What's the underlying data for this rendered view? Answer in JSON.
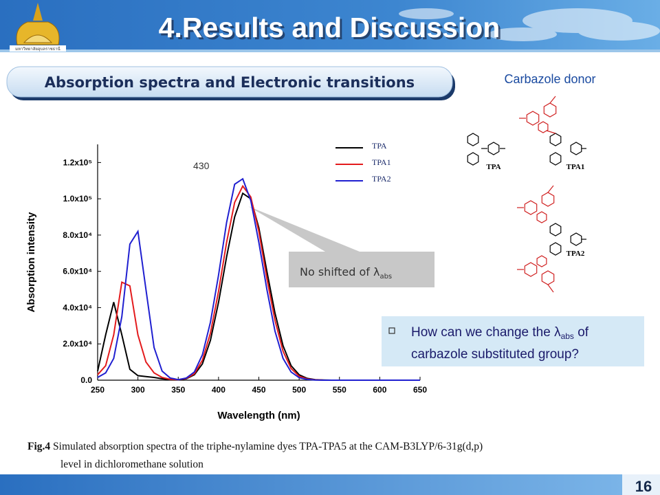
{
  "header": {
    "title": "4.Results and Discussion",
    "logo_text": "มหาวิทยาลัยอุบลราชธานี"
  },
  "banner": {
    "title": "Absorption spectra and Electronic transitions"
  },
  "structures": {
    "heading": "Carbazole donor",
    "labels": [
      "TPA",
      "TPA1",
      "TPA2"
    ]
  },
  "question": {
    "before": "How can we change the λ",
    "subscript": "abs",
    "after": " of",
    "line2": "carbazole substituted group?"
  },
  "caption": {
    "lead": "Fig.4",
    "line1": " Simulated absorption spectra of the triphe-nylamine dyes TPA-TPA5 at the CAM-B3LYP/6-31g(d,p)",
    "line2": "level in dichloromethane  solution"
  },
  "page_number": "16",
  "chart_data": {
    "type": "line",
    "xlabel": "Wavelength (nm)",
    "ylabel": "Absorption intensity",
    "x": [
      250,
      260,
      270,
      280,
      290,
      300,
      310,
      320,
      330,
      340,
      350,
      360,
      370,
      380,
      390,
      400,
      410,
      420,
      430,
      440,
      450,
      460,
      470,
      480,
      490,
      500,
      510,
      520,
      530,
      540,
      550,
      560,
      570,
      580,
      590,
      600,
      610,
      620,
      630,
      640,
      650
    ],
    "series": [
      {
        "name": "TPA",
        "color": "#000000",
        "values": [
          5000,
          25000,
          43000,
          25000,
          6000,
          2500,
          2000,
          1500,
          800,
          300,
          200,
          800,
          3000,
          9000,
          22000,
          43000,
          68000,
          90000,
          103000,
          100000,
          84000,
          60000,
          37000,
          19000,
          8000,
          3000,
          1000,
          300,
          100,
          0,
          0,
          0,
          0,
          0,
          0,
          0,
          0,
          0,
          0,
          0,
          0
        ]
      },
      {
        "name": "TPA1",
        "color": "#e31a1c",
        "values": [
          3000,
          8000,
          25000,
          54000,
          52000,
          25000,
          10000,
          4000,
          1500,
          500,
          300,
          1000,
          3500,
          11000,
          26000,
          49000,
          76000,
          98000,
          107000,
          101000,
          82000,
          56000,
          33000,
          16000,
          6500,
          2200,
          700,
          200,
          50,
          0,
          0,
          0,
          0,
          0,
          0,
          0,
          0,
          0,
          0,
          0,
          0
        ]
      },
      {
        "name": "TPA2",
        "color": "#1f1fd0",
        "values": [
          1500,
          4000,
          12000,
          35000,
          75000,
          82000,
          50000,
          18000,
          5000,
          1200,
          300,
          1200,
          4500,
          14000,
          32000,
          58000,
          87000,
          108000,
          111000,
          99000,
          76000,
          50000,
          27000,
          12000,
          4500,
          1400,
          400,
          100,
          0,
          0,
          0,
          0,
          0,
          0,
          0,
          0,
          0,
          0,
          0,
          0,
          0
        ]
      }
    ],
    "xlim": [
      250,
      650
    ],
    "xticks": [
      250,
      300,
      350,
      400,
      450,
      500,
      550,
      600,
      650
    ],
    "ylim": [
      0,
      130000
    ],
    "yticks": [
      {
        "value": 0,
        "label": "0.0"
      },
      {
        "value": 20000,
        "label": "2.0x10⁴"
      },
      {
        "value": 40000,
        "label": "4.0x10⁴"
      },
      {
        "value": 60000,
        "label": "6.0x10⁴"
      },
      {
        "value": 80000,
        "label": "8.0x10⁴"
      },
      {
        "value": 100000,
        "label": "1.0x10⁵"
      },
      {
        "value": 120000,
        "label": "1.2x10⁵"
      }
    ],
    "legend": "upper right",
    "peak_label": 430,
    "annotation": {
      "text": "No shifted of λ",
      "subscript": "abs"
    }
  }
}
